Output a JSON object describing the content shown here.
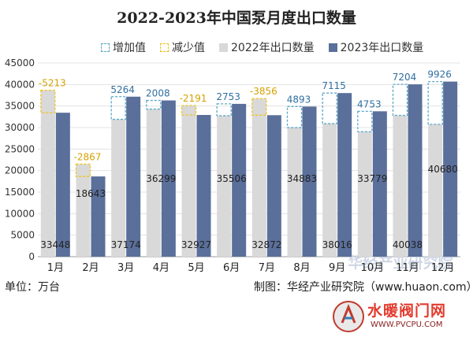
{
  "title": "2022-2023年中国泵月度出口数量",
  "legend": {
    "increase": "增加值",
    "decrease": "减少值",
    "s2022": "2022年出口数量",
    "s2023": "2023年出口数量"
  },
  "footer": {
    "unit": "单位：万台",
    "source": "制图：华经产业研究院（www.huaon.com）"
  },
  "watermark": "华经产业研究院",
  "logo": {
    "text": "水暖阀门网",
    "url": "WWW.PVCPU.COM"
  },
  "colors": {
    "s2022": "#d9d9d9",
    "s2023": "#5a6f9a",
    "increase": "#5aa9c8",
    "decrease": "#f0c419"
  },
  "chart_data": {
    "type": "bar",
    "categories": [
      "1月",
      "2月",
      "3月",
      "4月",
      "5月",
      "6月",
      "7月",
      "8月",
      "9月",
      "10月",
      "11月",
      "12月"
    ],
    "series": [
      {
        "name": "2022年出口数量",
        "values": [
          38661,
          21510,
          31910,
          34291,
          35118,
          32753,
          36728,
          29990,
          30901,
          29026,
          32834,
          30754
        ]
      },
      {
        "name": "2023年出口数量",
        "values": [
          33448,
          18643,
          37174,
          36299,
          32927,
          35506,
          32872,
          34883,
          38016,
          33779,
          40038,
          40680
        ]
      }
    ],
    "difference": [
      -5213,
      -2867,
      5264,
      2008,
      -2191,
      2753,
      -3856,
      4893,
      7115,
      4753,
      7204,
      9926
    ],
    "ylim": [
      0,
      45000
    ],
    "yticks": [
      0,
      5000,
      10000,
      15000,
      20000,
      25000,
      30000,
      35000,
      40000,
      45000
    ],
    "grid": true,
    "legend_position": "top"
  }
}
